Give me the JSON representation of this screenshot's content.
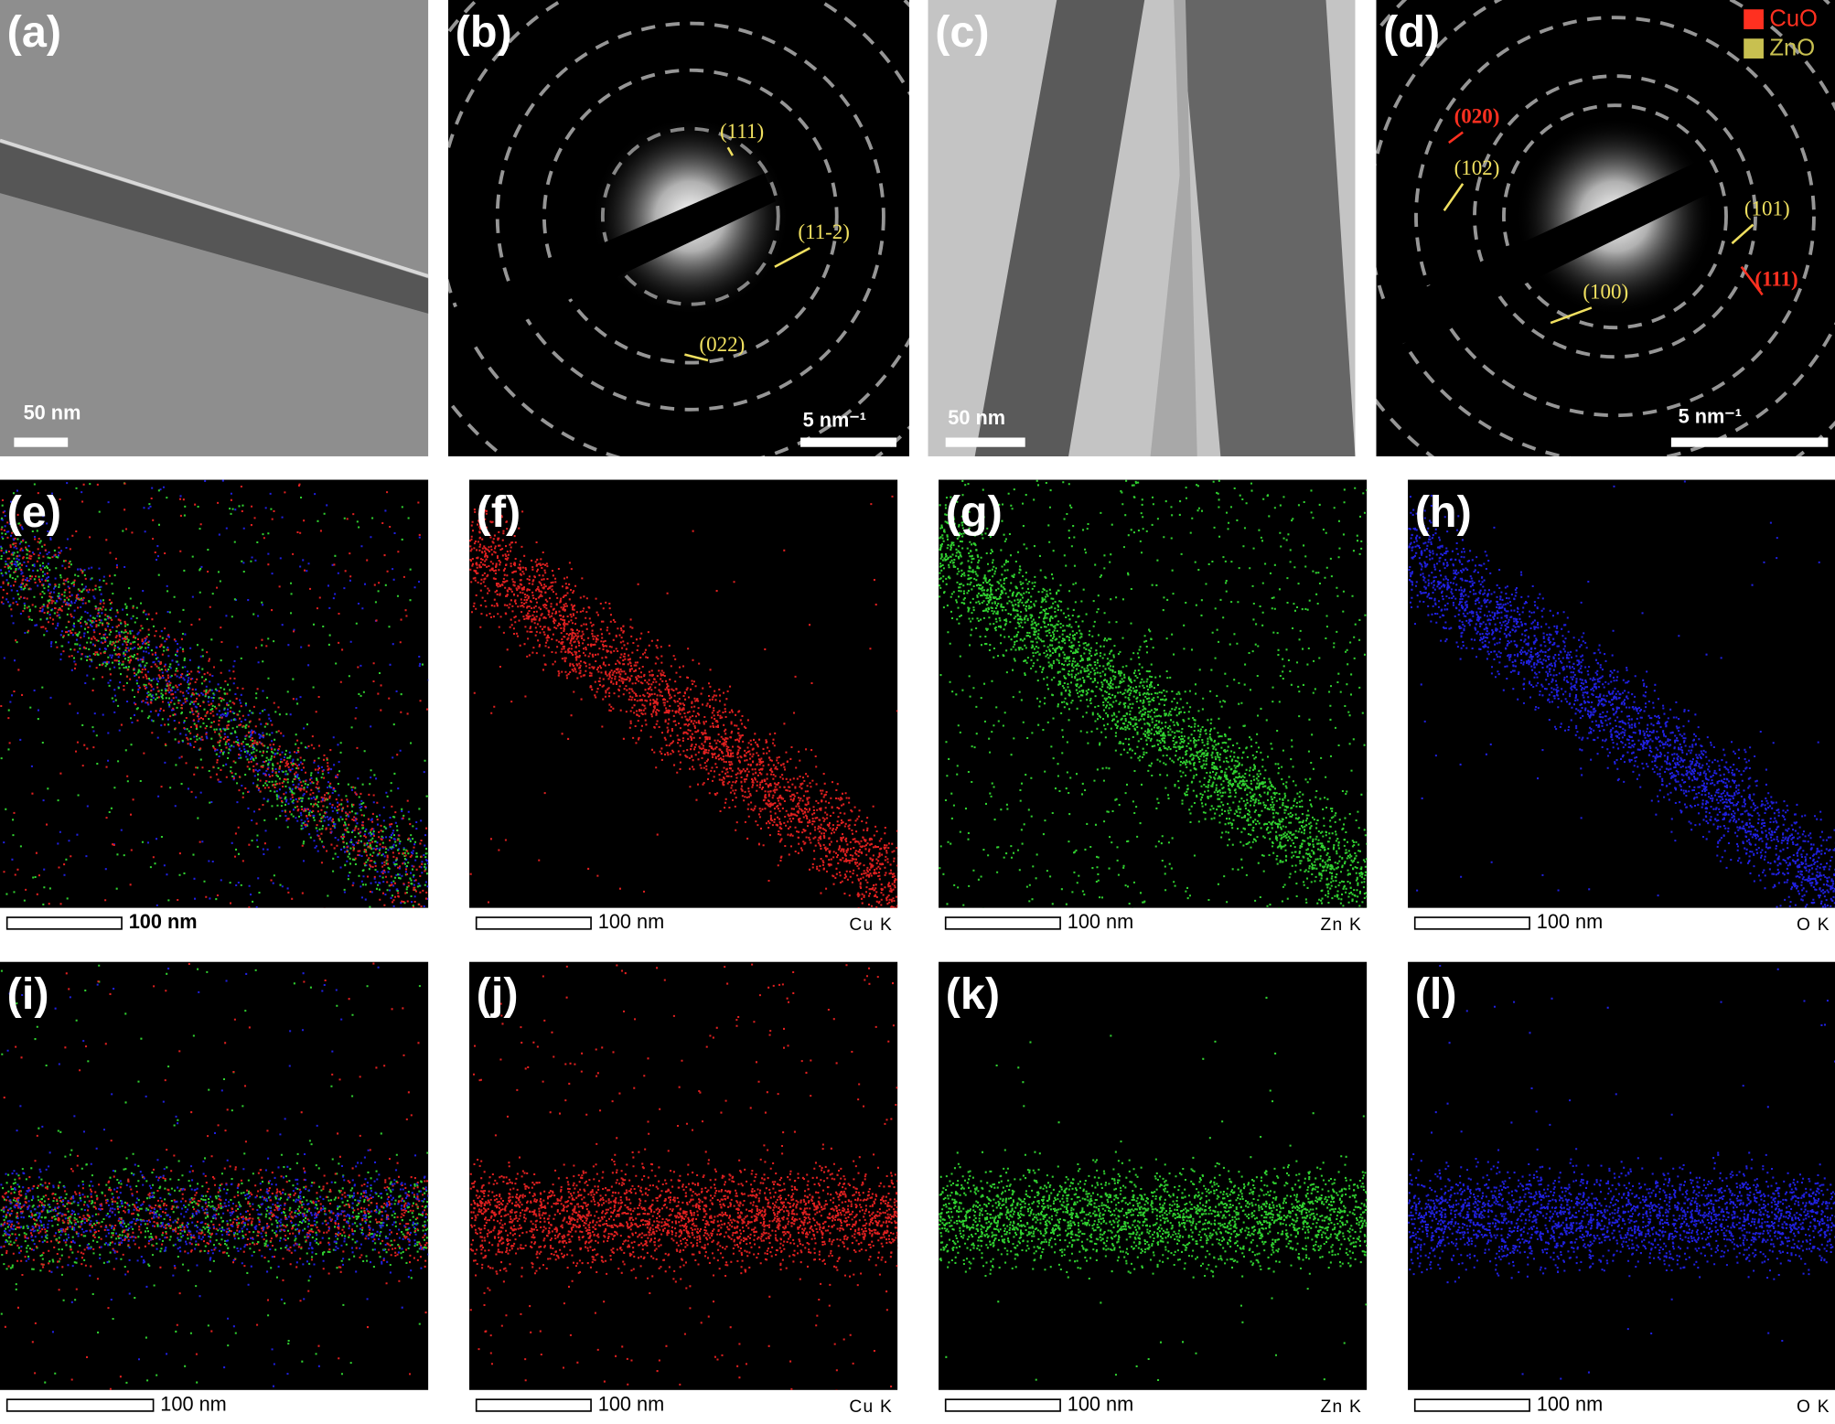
{
  "legend": [
    {
      "name": "CuO"
    },
    {
      "name": "ZnO"
    }
  ],
  "panels": [
    {
      "label": "(a)",
      "scale_bar": "50 nm"
    },
    {
      "label": "(b)",
      "scale_bar": "5 nm⁻¹",
      "annotations": [
        "(111)",
        "(11-2)",
        "(022)"
      ]
    },
    {
      "label": "(c)",
      "scale_bar": "50 nm"
    },
    {
      "label": "(d)",
      "scale_bar": "5 nm⁻¹",
      "annotations": [
        "(020)",
        "(102)",
        "(101)",
        "(111)",
        "(100)"
      ]
    },
    {
      "label": "(e)",
      "scale_bar": "100 nm"
    },
    {
      "label": "(f)",
      "scale_bar": "100 nm",
      "element": "Cu K"
    },
    {
      "label": "(g)",
      "scale_bar": "100 nm",
      "element": "Zn K"
    },
    {
      "label": "(h)",
      "scale_bar": "100 nm",
      "element": "O K"
    },
    {
      "label": "(i)",
      "scale_bar": "100 nm"
    },
    {
      "label": "(j)",
      "scale_bar": "100 nm",
      "element": "Cu K"
    },
    {
      "label": "(k)",
      "scale_bar": "100 nm",
      "element": "Zn K"
    },
    {
      "label": "(l)",
      "scale_bar": "100 nm",
      "element": "O K"
    }
  ]
}
